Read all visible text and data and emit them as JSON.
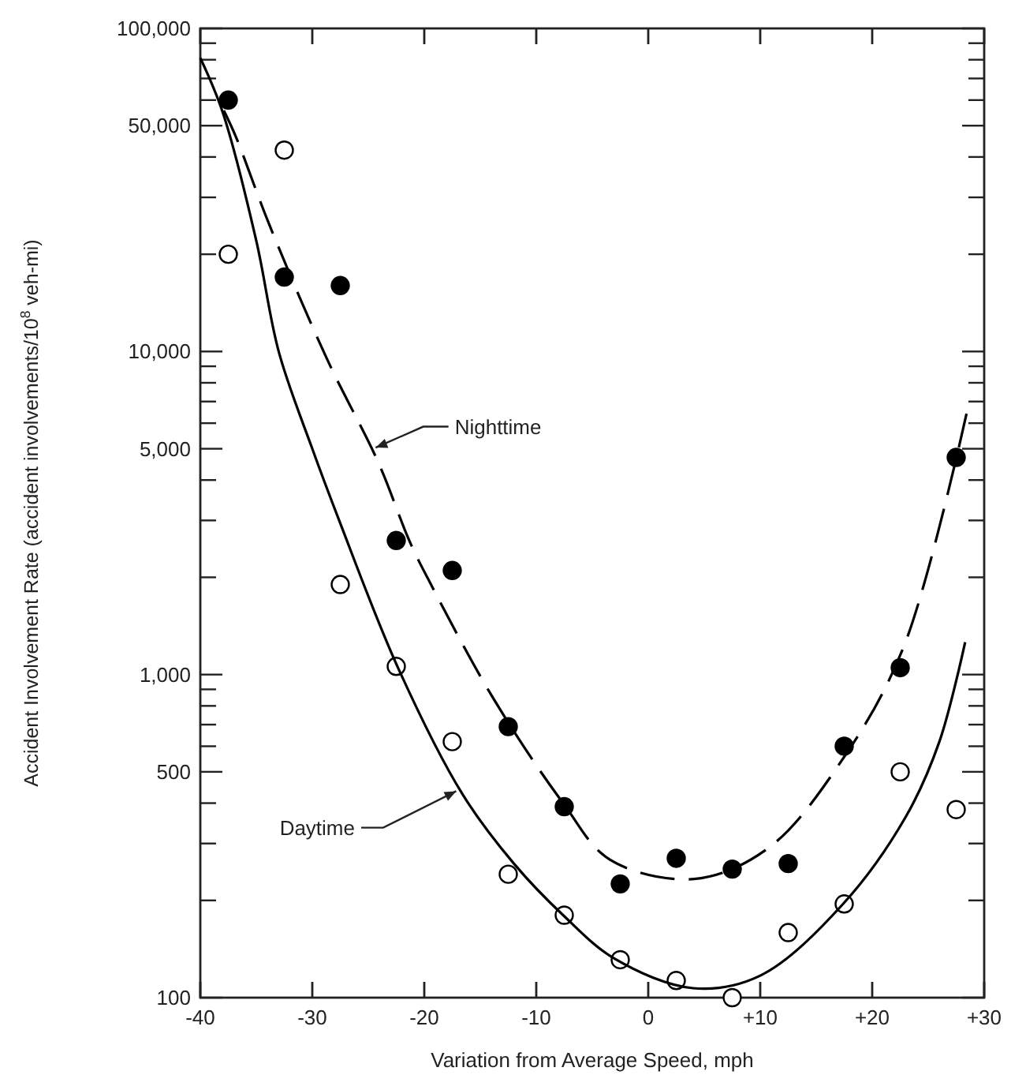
{
  "chart_data": {
    "type": "scatter",
    "xlabel": "Variation from Average Speed, mph",
    "ylabel": "Accident Involvement Rate (accident involvements/10$^{8}$ veh-mi)",
    "log": "y",
    "grid": false,
    "marker": "circle",
    "xlim": [
      -40,
      30
    ],
    "xticks": [
      {
        "value": -40,
        "label": "-40"
      },
      {
        "value": -30,
        "label": "-30"
      },
      {
        "value": -20,
        "label": "-20"
      },
      {
        "value": -10,
        "label": "-10"
      },
      {
        "value": 0,
        "label": "0"
      },
      {
        "value": 10,
        "label": "+10"
      },
      {
        "value": 20,
        "label": "+20"
      },
      {
        "value": 30,
        "label": "+30"
      }
    ],
    "ylim": [
      100,
      100000
    ],
    "yticks": [
      {
        "value": 100,
        "label": "100"
      },
      {
        "value": 200,
        "label": null
      },
      {
        "value": 300,
        "label": null
      },
      {
        "value": 400,
        "label": null
      },
      {
        "value": 500,
        "label": "500"
      },
      {
        "value": 600,
        "label": null
      },
      {
        "value": 700,
        "label": null
      },
      {
        "value": 800,
        "label": null
      },
      {
        "value": 900,
        "label": null
      },
      {
        "value": 1000,
        "label": "1,000"
      },
      {
        "value": 2000,
        "label": null
      },
      {
        "value": 3000,
        "label": null
      },
      {
        "value": 4000,
        "label": null
      },
      {
        "value": 5000,
        "label": "5,000"
      },
      {
        "value": 6000,
        "label": null
      },
      {
        "value": 7000,
        "label": null
      },
      {
        "value": 8000,
        "label": null
      },
      {
        "value": 9000,
        "label": null
      },
      {
        "value": 10000,
        "label": "10,000"
      },
      {
        "value": 20000,
        "label": null
      },
      {
        "value": 30000,
        "label": null
      },
      {
        "value": 40000,
        "label": null
      },
      {
        "value": 50000,
        "label": "50,000"
      },
      {
        "value": 60000,
        "label": null
      },
      {
        "value": 70000,
        "label": null
      },
      {
        "value": 80000,
        "label": null
      },
      {
        "value": 90000,
        "label": null
      },
      {
        "value": 100000,
        "label": "100,000"
      }
    ],
    "x": [
      -37.5,
      -32.5,
      -27.5,
      -22.5,
      -17.5,
      -12.5,
      -7.5,
      -2.5,
      2.5,
      7.5,
      12.5,
      17.5,
      22.5,
      27.5
    ],
    "series": [
      {
        "color": "#000000",
        "values": [
          60000,
          17000,
          16000,
          2600,
          2100,
          690,
          390,
          225,
          270,
          250,
          260,
          600,
          1050,
          4700
        ]
      },
      {
        "color": "#ffffff",
        "values": [
          20000,
          42000,
          1900,
          1060,
          620,
          241,
          180,
          131,
          113,
          100,
          159,
          195,
          500,
          382
        ]
      },
      {
        "type": "line",
        "color": "#000000",
        "line_style": "dashed",
        "marker": "none",
        "x": [
          -37.9,
          -36.8,
          -33.9,
          -28.7,
          -24.1,
          -21.3,
          -19.4,
          -13.8,
          -7.6,
          -3.4,
          4.1,
          10.7,
          17.2,
          22.8,
          28.5
        ],
        "values": [
          55700,
          46000,
          25000,
          9500,
          4530,
          2580,
          1900,
          840,
          400,
          267,
          233,
          290,
          537,
          1216,
          6600
        ]
      },
      {
        "type": "line",
        "color": "#000000",
        "line_style": "solid",
        "marker": "none",
        "x": [
          -40,
          -38,
          -35,
          -33,
          -30,
          -27.6,
          -22.4,
          -16.6,
          -12,
          -7.6,
          -3,
          4,
          10,
          17.4,
          23,
          26,
          28.3
        ],
        "values": [
          81000,
          55000,
          22000,
          10000,
          5000,
          3000,
          1060,
          427,
          260,
          180,
          132,
          107,
          117,
          195,
          363,
          620,
          1260
        ]
      }
    ],
    "annotations": [
      {
        "text": "Nighttime",
        "x": -24.6,
        "y": 5000
      },
      {
        "text": "Daytime",
        "x": -16.9,
        "y": 440
      }
    ]
  }
}
